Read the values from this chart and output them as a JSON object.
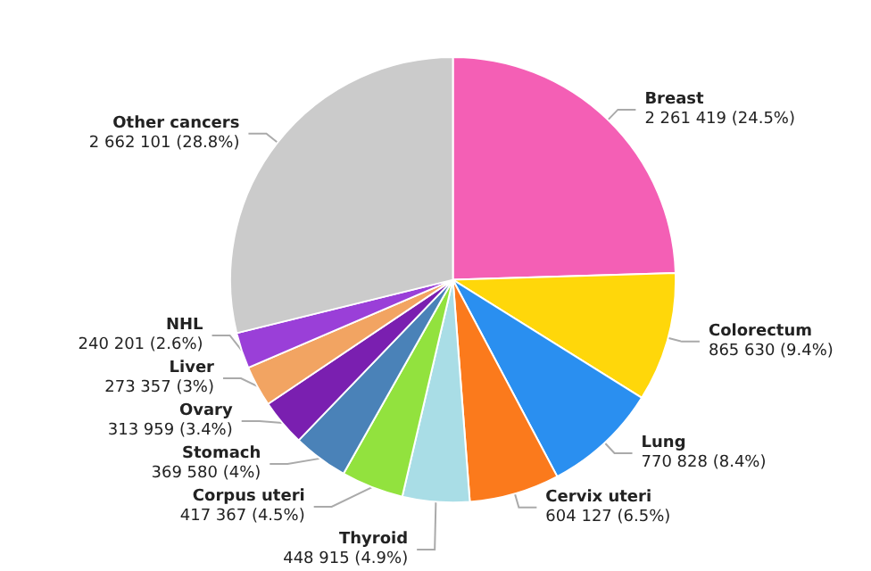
{
  "chart_data": {
    "type": "pie",
    "categories": [
      "Breast",
      "Colorectum",
      "Lung",
      "Cervix uteri",
      "Thyroid",
      "Corpus uteri",
      "Stomach",
      "Ovary",
      "Liver",
      "NHL",
      "Other cancers"
    ],
    "values": [
      2261419,
      865630,
      770828,
      604127,
      448915,
      417367,
      369580,
      313959,
      273357,
      240201,
      2662101
    ],
    "value_labels": [
      "2 261 419 (24.5%)",
      "865 630 (9.4%)",
      "770 828 (8.4%)",
      "604 127 (6.5%)",
      "448 915 (4.9%)",
      "417 367 (4.5%)",
      "369 580 (4%)",
      "313 959 (3.4%)",
      "273 357 (3%)",
      "240 201 (2.6%)",
      "2 662 101 (28.8%)"
    ],
    "colors": [
      "#f45fb5",
      "#ffd70a",
      "#2a8ff0",
      "#fb7a1c",
      "#a9dde6",
      "#92e23e",
      "#4a82b8",
      "#7a1fb0",
      "#f2a462",
      "#9a3fd8",
      "#cbcbcb"
    ],
    "legend": false
  }
}
